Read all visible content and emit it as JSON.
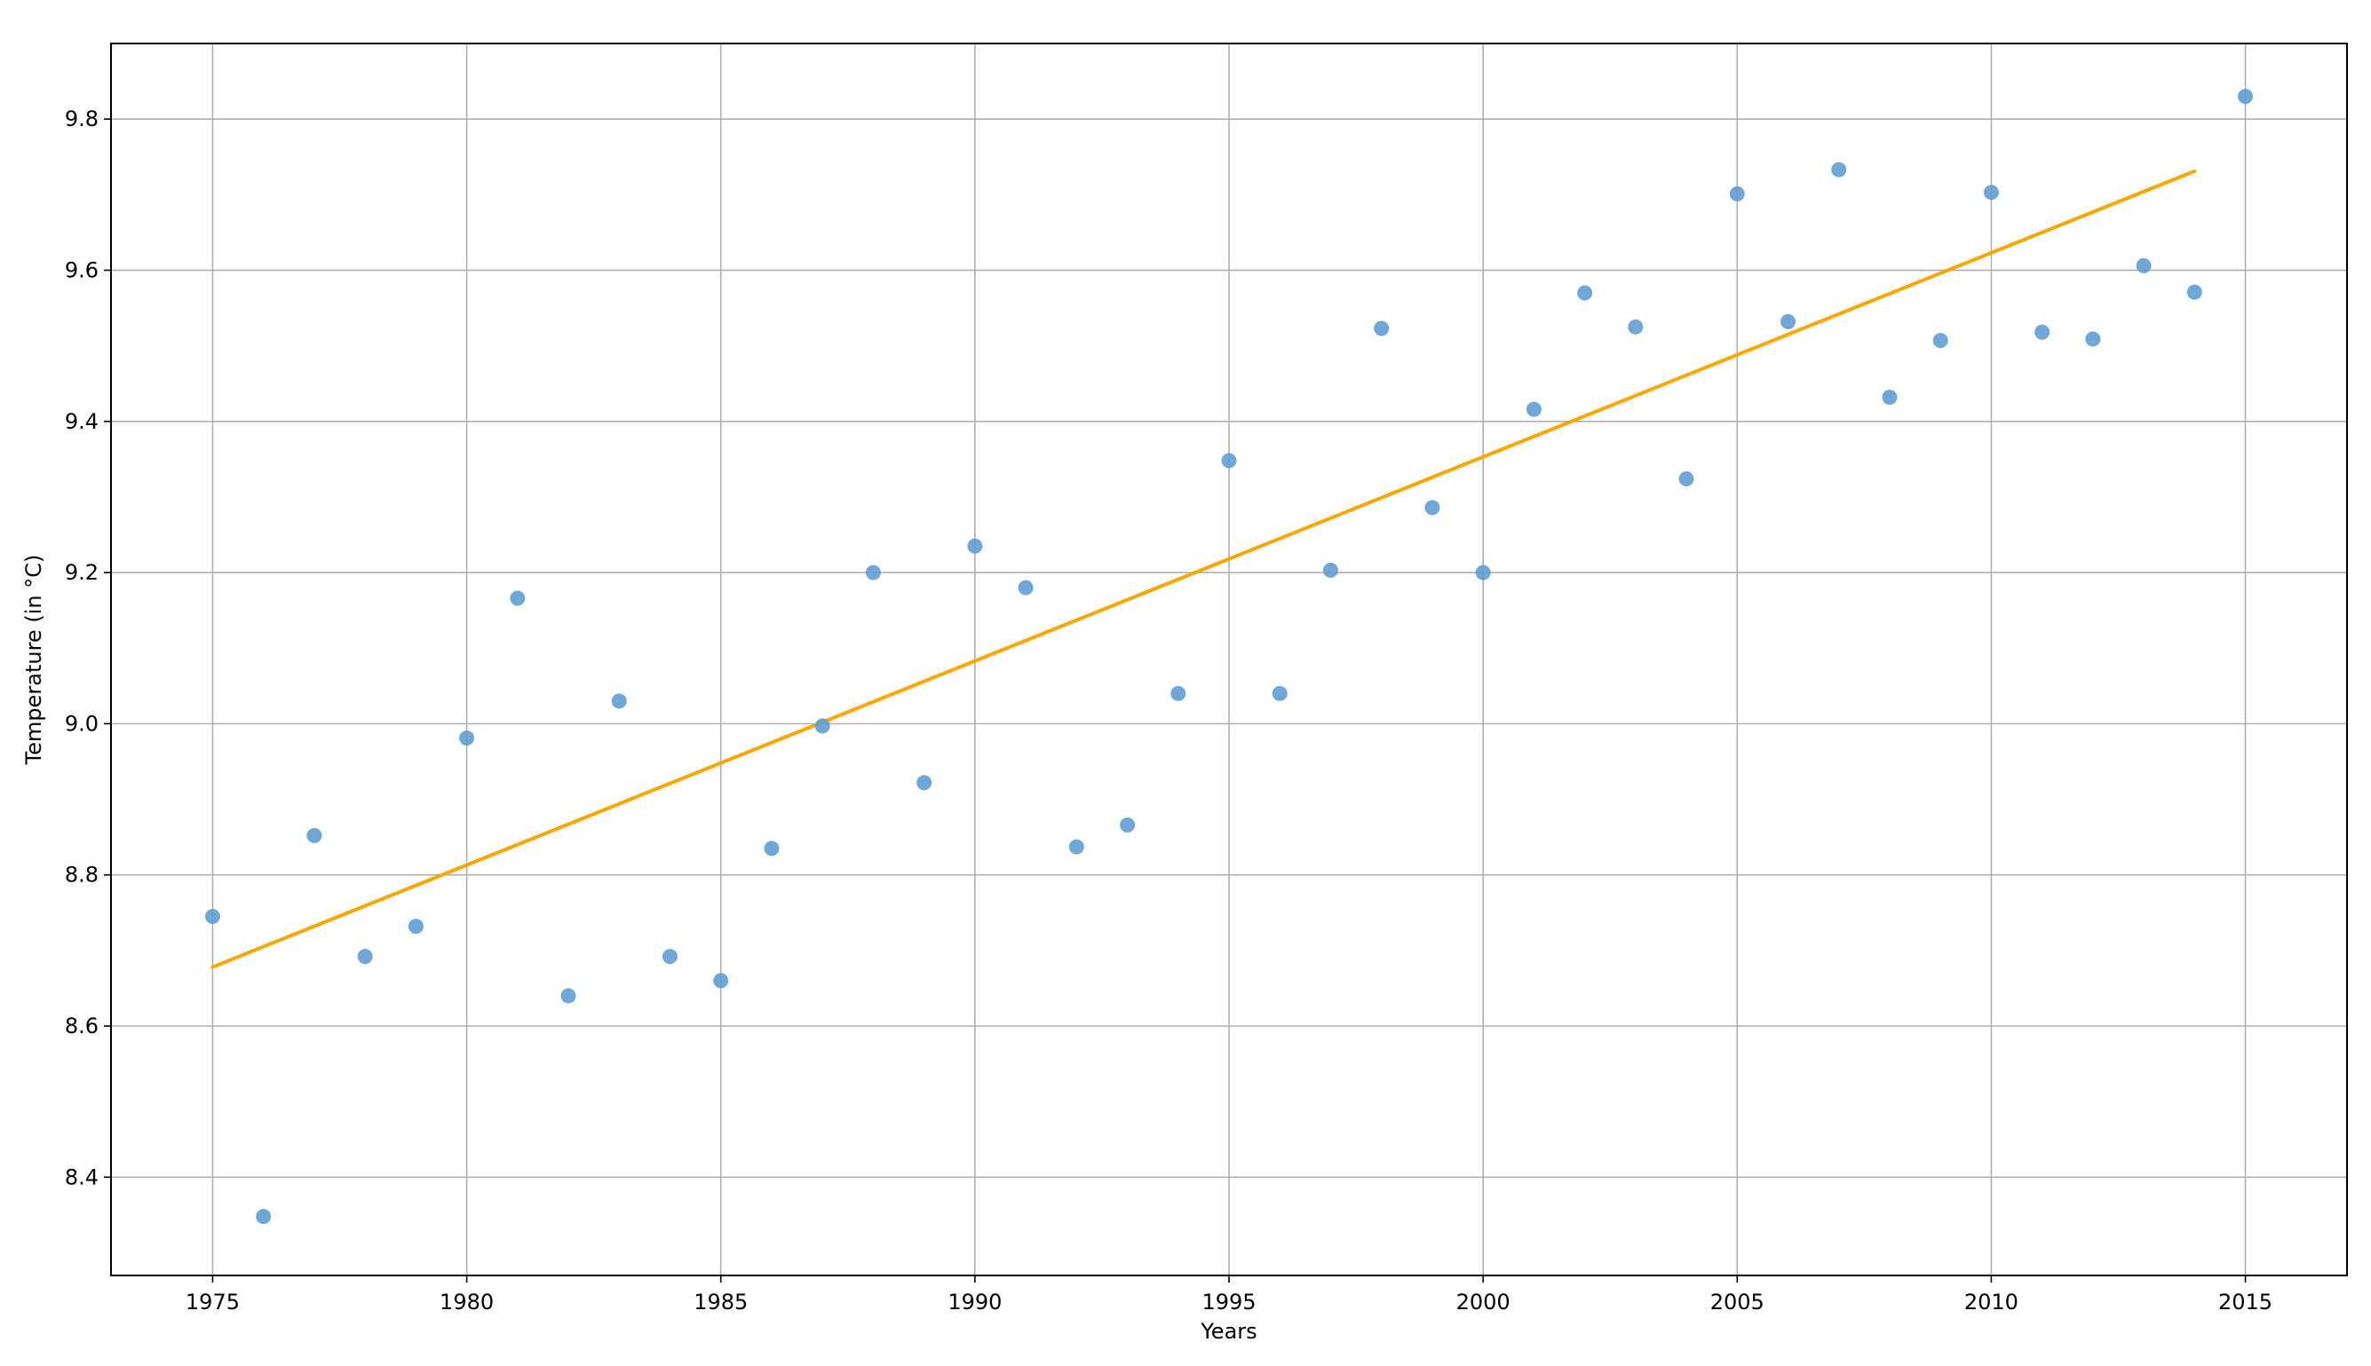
{
  "chart_data": {
    "type": "scatter",
    "title": "",
    "xlabel": "Years",
    "ylabel": "Temperature (in °C)",
    "xlim": [
      1973,
      2017
    ],
    "ylim": [
      8.27,
      9.9
    ],
    "grid": true,
    "legend": "none",
    "x_ticks": [
      1975,
      1980,
      1985,
      1990,
      1995,
      2000,
      2005,
      2010,
      2015
    ],
    "y_ticks": [
      8.4,
      8.6,
      8.8,
      9.0,
      9.2,
      9.4,
      9.6,
      9.8
    ],
    "x_tick_labels": [
      "1975",
      "1980",
      "1985",
      "1990",
      "1995",
      "2000",
      "2005",
      "2010",
      "2015"
    ],
    "y_tick_labels": [
      "8.4",
      "8.6",
      "8.8",
      "9.0",
      "9.2",
      "9.4",
      "9.6",
      "9.8"
    ],
    "colors": {
      "points": "#5b9bd0",
      "trend": "#ffa500",
      "grid": "#b0b0b0",
      "axes": "#000000"
    },
    "series": [
      {
        "kind": "scatter",
        "x": [
          1975,
          1976,
          1977,
          1978,
          1979,
          1980,
          1981,
          1982,
          1983,
          1984,
          1985,
          1986,
          1987,
          1988,
          1989,
          1990,
          1991,
          1992,
          1993,
          1994,
          1995,
          1996,
          1997,
          1998,
          1999,
          2000,
          2001,
          2002,
          2003,
          2004,
          2005,
          2006,
          2007,
          2008,
          2009,
          2010,
          2011,
          2012,
          2013,
          2014,
          2015
        ],
        "y": [
          8.745,
          8.348,
          8.852,
          8.692,
          8.732,
          8.981,
          9.166,
          8.64,
          9.03,
          8.692,
          8.66,
          8.835,
          8.997,
          9.2,
          8.922,
          9.235,
          9.18,
          8.837,
          8.866,
          9.04,
          9.348,
          9.04,
          9.203,
          9.523,
          9.286,
          9.2,
          9.416,
          9.57,
          9.525,
          9.324,
          9.701,
          9.532,
          9.733,
          9.432,
          9.507,
          9.703,
          9.518,
          9.509,
          9.606,
          9.571,
          9.83
        ]
      },
      {
        "kind": "line",
        "x": [
          1975,
          2014
        ],
        "y": [
          8.678,
          9.731
        ]
      }
    ]
  }
}
